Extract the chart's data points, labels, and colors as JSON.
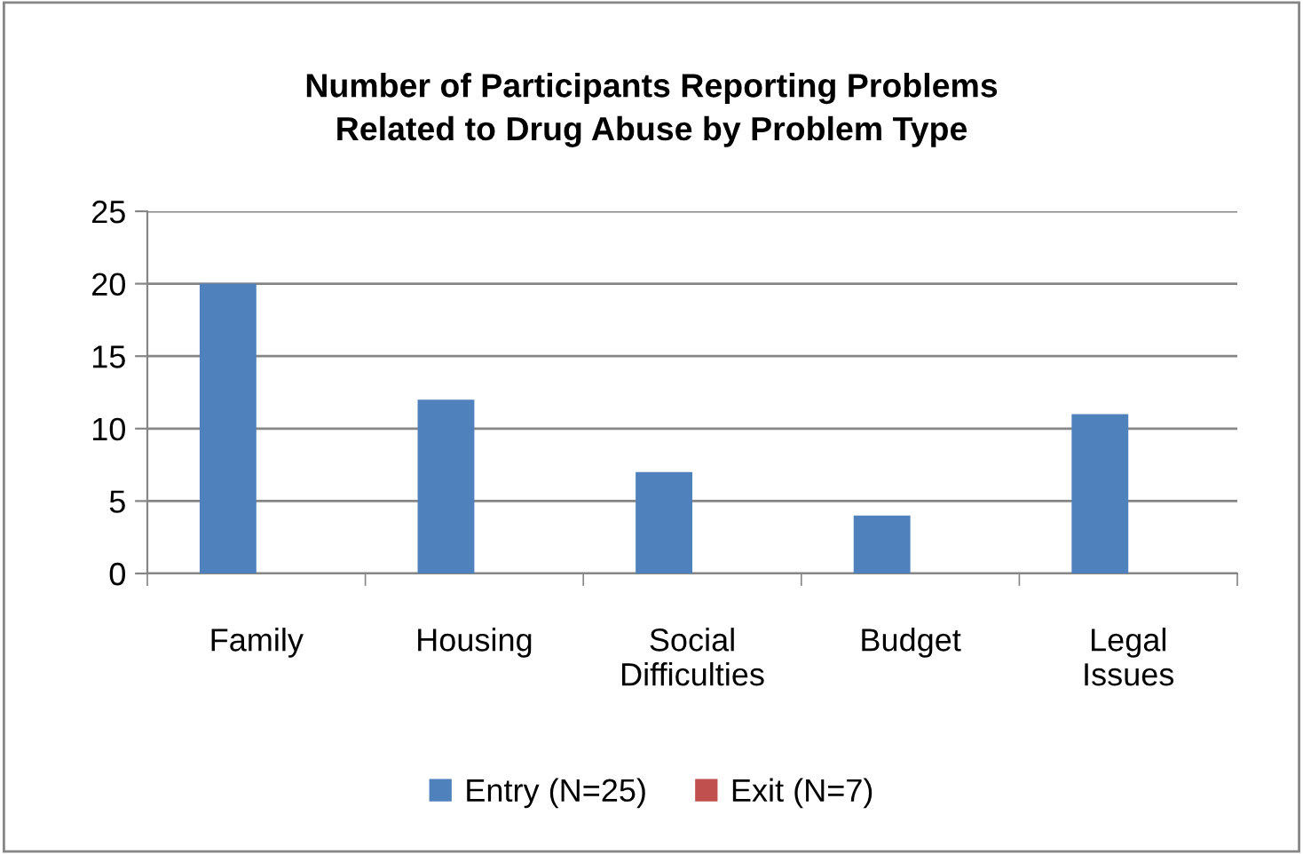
{
  "chart_data": {
    "type": "bar",
    "title": "Number of Participants Reporting Problems\nRelated to Drug Abuse by Problem Type",
    "categories": [
      "Family",
      "Housing",
      "Social\nDifficulties",
      "Budget",
      "Legal\nIssues"
    ],
    "series": [
      {
        "name": "Entry (N=25)",
        "color": "#4f81bd",
        "values": [
          20,
          12,
          7,
          4,
          11
        ]
      },
      {
        "name": "Exit (N=7)",
        "color": "#c0504d",
        "values": [
          0,
          0,
          0,
          0,
          0
        ]
      }
    ],
    "ylim": [
      0,
      25
    ],
    "yticks": [
      0,
      5,
      10,
      15,
      20,
      25
    ],
    "grid": "y",
    "legend": "bottom"
  }
}
